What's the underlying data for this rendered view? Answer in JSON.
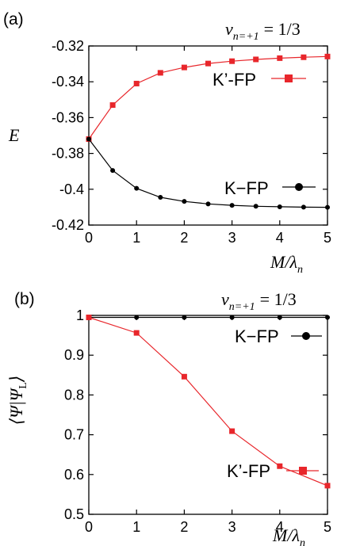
{
  "chart_data": [
    {
      "type": "line",
      "panel_label": "(a)",
      "annotation": "ν_{n=+1} = 1/3",
      "annotation_main": "ν",
      "annotation_sub": "n=+1",
      "annotation_value": "= 1/3",
      "xlabel": "M/λ_n",
      "ylabel": "E",
      "xlim": [
        0,
        5
      ],
      "ylim": [
        -0.42,
        -0.32
      ],
      "xticks": [
        0,
        1,
        2,
        3,
        4,
        5
      ],
      "xtick_labels": [
        "0",
        "1",
        "2",
        "3",
        "4",
        "5"
      ],
      "yticks": [
        -0.42,
        -0.4,
        -0.38,
        -0.36,
        -0.34,
        -0.32
      ],
      "ytick_labels": [
        "-0.42",
        "-0.4",
        "-0.38",
        "-0.36",
        "-0.34",
        "-0.32"
      ],
      "series": [
        {
          "name": "K'-FP",
          "color": "#e8262b",
          "marker": "square",
          "x": [
            0,
            0.5,
            1,
            1.5,
            2,
            2.5,
            3,
            3.5,
            4,
            4.5,
            5
          ],
          "y": [
            -0.372,
            -0.353,
            -0.341,
            -0.335,
            -0.332,
            -0.3298,
            -0.3285,
            -0.3275,
            -0.3268,
            -0.3263,
            -0.3259
          ]
        },
        {
          "name": "K-FP",
          "color": "#000000",
          "marker": "circle",
          "x": [
            0,
            0.5,
            1,
            1.5,
            2,
            2.5,
            3,
            3.5,
            4,
            4.5,
            5
          ],
          "y": [
            -0.372,
            -0.3895,
            -0.3995,
            -0.4045,
            -0.4068,
            -0.4082,
            -0.409,
            -0.4095,
            -0.4098,
            -0.41,
            -0.4101
          ]
        }
      ],
      "legend": [
        {
          "label": "K’-FP",
          "series": 0
        },
        {
          "label": "K−FP",
          "series": 1
        }
      ]
    },
    {
      "type": "line",
      "panel_label": "(b)",
      "annotation": "ν_{n=+1} = 1/3",
      "annotation_main": "ν",
      "annotation_sub": "n=+1",
      "annotation_value": "= 1/3",
      "xlabel": "M/λ_n",
      "ylabel": "⟨Ψ|Ψ_L⟩",
      "xlim": [
        0,
        5
      ],
      "ylim": [
        0.5,
        1.0
      ],
      "xticks": [
        0,
        1,
        2,
        3,
        4,
        5
      ],
      "xtick_labels": [
        "0",
        "1",
        "2",
        "3",
        "4",
        "5"
      ],
      "yticks": [
        0.5,
        0.6,
        0.7,
        0.8,
        0.9,
        1.0
      ],
      "ytick_labels": [
        "0.5",
        "0.6",
        "0.7",
        "0.8",
        "0.9",
        "1"
      ],
      "series": [
        {
          "name": "K-FP",
          "color": "#000000",
          "marker": "circle",
          "x": [
            0,
            1,
            2,
            3,
            4,
            5
          ],
          "y": [
            0.995,
            0.995,
            0.995,
            0.995,
            0.995,
            0.995
          ]
        },
        {
          "name": "K'-FP",
          "color": "#e8262b",
          "marker": "square",
          "x": [
            0,
            1,
            2,
            3,
            4,
            5
          ],
          "y": [
            0.995,
            0.956,
            0.846,
            0.709,
            0.621,
            0.572
          ]
        }
      ],
      "legend": [
        {
          "label": "K−FP",
          "series": 0
        },
        {
          "label": "K’-FP",
          "series": 1
        }
      ]
    }
  ]
}
